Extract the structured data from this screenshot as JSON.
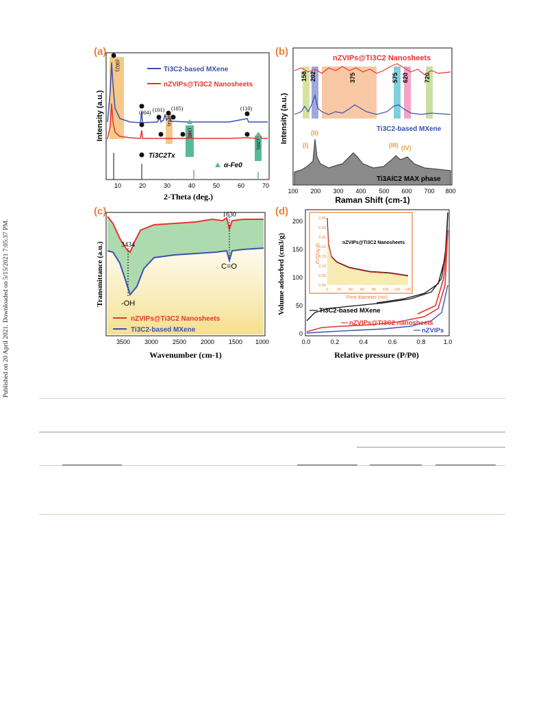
{
  "sidebar_text": "Published on 20 April 2021. Downloaded on 5/15/2021 7:05:37 PM.",
  "colors": {
    "red": "#e8322e",
    "blue": "#3a4fb0",
    "orange_label": "#e8803a",
    "black": "#111111",
    "green_fill": "#9fd4a0",
    "yellow_fill": "#f6e6a0"
  },
  "panel_a": {
    "label": "(a)",
    "ylabel": "Intensity (a.u.)",
    "xlabel": "2-Theta (deg.)",
    "legend": [
      "Ti3C2-based MXene",
      "nZVIPs@Ti3C2 Nanosheets"
    ],
    "peaks": [
      "(002)",
      "(004)",
      "(101)",
      "(104)",
      "(105)",
      "(110)",
      "(110)",
      "(200)"
    ],
    "marker_legend": [
      "Ti3C2Tx",
      "α-Fe0"
    ],
    "xticks": [
      "10",
      "20",
      "30",
      "40",
      "50",
      "60",
      "70"
    ]
  },
  "panel_b": {
    "label": "(b)",
    "ylabel": "Intensity (a.u.)",
    "xlabel": "Raman Shift (cm-1)",
    "series": [
      "nZVIPs@Ti3C2 Nanosheets",
      "Ti3C2-based MXene",
      "Ti3AlC2 MAX phase"
    ],
    "bands": [
      "158",
      "202",
      "375",
      "575",
      "620",
      "720"
    ],
    "roman": [
      "(I)",
      "(II)",
      "(III)",
      "(IV)"
    ],
    "xticks": [
      "100",
      "200",
      "300",
      "400",
      "500",
      "600",
      "700",
      "800"
    ]
  },
  "panel_c": {
    "label": "(c)",
    "ylabel": "Transmittance (a.u.)",
    "xlabel": "Wavenumber (cm-1)",
    "annotations": [
      "3434",
      "1630",
      "-OH",
      "C=O"
    ],
    "legend": [
      "nZVIPs@Ti3C2 Nanosheets",
      "Ti3C2-based MXene"
    ],
    "xticks": [
      "3500",
      "3000",
      "2500",
      "2000",
      "1500",
      "1000"
    ]
  },
  "panel_d": {
    "label": "(d)",
    "ylabel": "Volume adsorbed (cm3/g)",
    "xlabel": "Relative pressure (P/P0)",
    "series": [
      "Ti3C2-based MXene",
      "nZVIPs@Ti3C2 nanosheets",
      "nZVIPs"
    ],
    "xticks": [
      "0.0",
      "0.2",
      "0.4",
      "0.6",
      "0.8",
      "1.0"
    ],
    "yticks": [
      "0",
      "50",
      "100",
      "150",
      "200"
    ],
    "inset": {
      "ylabel": "dV/(log d)",
      "xlabel": "Pore diameter (nm)",
      "legend": "nZVIPs@Ti3C2 Nanosheets",
      "xticks": [
        "0",
        "20",
        "40",
        "60",
        "80",
        "100",
        "120",
        "140"
      ],
      "yticks": [
        "0.00",
        "0.05",
        "0.10",
        "0.15",
        "0.20",
        "0.25",
        "0.30",
        "0.35"
      ]
    }
  }
}
